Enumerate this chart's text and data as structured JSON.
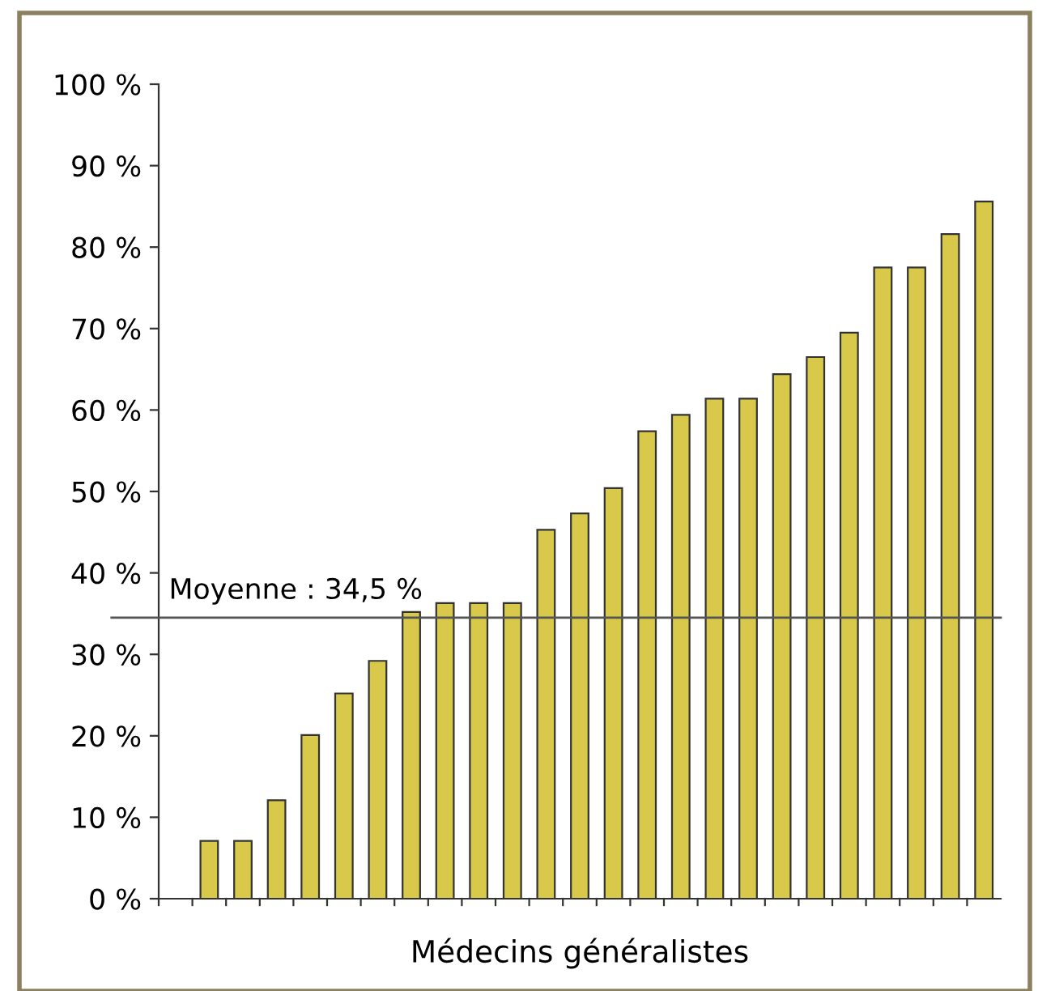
{
  "chart_data": {
    "type": "bar",
    "xlabel": "Médecins généralistes",
    "categories": [
      null,
      null,
      null,
      null,
      null,
      null,
      null,
      null,
      null,
      null,
      null,
      null,
      null,
      null,
      null,
      null,
      null,
      null,
      null,
      null,
      null,
      null,
      null,
      null
    ],
    "values": [
      7.1,
      7.1,
      12.1,
      20.1,
      25.2,
      29.2,
      35.2,
      36.3,
      36.3,
      36.3,
      45.3,
      47.3,
      50.4,
      57.4,
      59.4,
      61.4,
      61.4,
      64.4,
      66.5,
      69.5,
      77.5,
      77.5,
      81.6,
      85.6
    ],
    "color": "#d9c94a",
    "ylim": [
      0,
      100
    ],
    "yticks": [
      {
        "value": 0,
        "label": "0 %"
      },
      {
        "value": 10,
        "label": "10 %"
      },
      {
        "value": 20,
        "label": "20 %"
      },
      {
        "value": 30,
        "label": "30 %"
      },
      {
        "value": 40,
        "label": "40 %"
      },
      {
        "value": 50,
        "label": "50 %"
      },
      {
        "value": 60,
        "label": "60 %"
      },
      {
        "value": 70,
        "label": "70 %"
      },
      {
        "value": 80,
        "label": "80 %"
      },
      {
        "value": 90,
        "label": "90 %"
      },
      {
        "value": 100,
        "label": "100 %"
      }
    ],
    "ref_lines": [
      {
        "axis": "y",
        "value": 34.5,
        "label": "Moyenne : 34,5 %",
        "color": "#555555"
      }
    ],
    "grid": false
  }
}
